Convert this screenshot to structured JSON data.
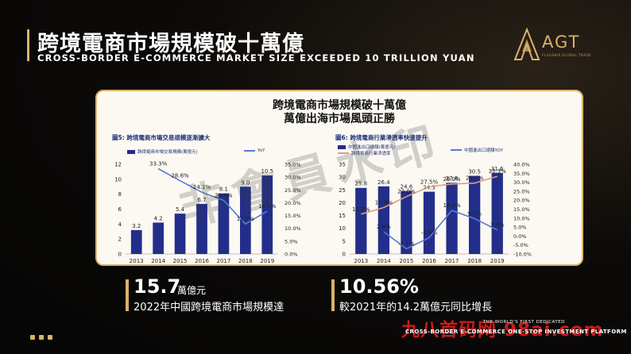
{
  "header": {
    "title_zh": "跨境電商市場規模破十萬億",
    "title_en": "CROSS-BORDER E-COMMERCE MARKET SIZE EXCEEDED 10 TRILLION YUAN"
  },
  "logo": {
    "text": "AGT",
    "subtext": "FLAGSHIP GLOBAL TRADE"
  },
  "panel": {
    "heading1": "跨境電商市場規模破十萬億",
    "heading2": "萬億出海市場風頭正勝"
  },
  "watermark": "非會員水印",
  "colors": {
    "accent": "#d9b26a",
    "bar": "#232e8a",
    "line": "#5a7ad0",
    "line_red": "#e49a80"
  },
  "chart_data": [
    {
      "type": "bar",
      "title": "圖5: 跨境電商市場交易規模逐漸擴大",
      "categories": [
        "2013",
        "2014",
        "2015",
        "2016",
        "2017",
        "2018",
        "2019"
      ],
      "series": [
        {
          "name": "跨境電商市場交易規模(萬億元)",
          "type": "bar",
          "axis": "left",
          "values": [
            3.2,
            4.2,
            5.4,
            6.7,
            8.1,
            9.0,
            10.5
          ]
        },
        {
          "name": "YoY",
          "type": "line",
          "axis": "right",
          "values": [
            null,
            33.3,
            28.6,
            24.1,
            20.9,
            11.7,
            16.7
          ]
        }
      ],
      "labels": {
        "bar": [
          "3.2",
          "4.2",
          "5.4",
          "6.7",
          "8.1",
          "9.0",
          "10.5"
        ],
        "line": [
          "",
          "33.3%",
          "28.6%",
          "24.1%",
          "20.9%",
          "11.7%",
          "16.7%"
        ]
      },
      "left_ticks": [
        "0",
        "2",
        "4",
        "6",
        "8",
        "10",
        "12"
      ],
      "right_ticks": [
        "0.0%",
        "5.0%",
        "10.0%",
        "15.0%",
        "20.0%",
        "25.0%",
        "30.0%",
        "35.0%"
      ],
      "ylim_left": [
        0,
        12
      ],
      "ylim_right": [
        0,
        35
      ]
    },
    {
      "type": "bar",
      "title": "圖6: 跨境電商行業滲透率快速提升",
      "categories": [
        "2013",
        "2014",
        "2015",
        "2016",
        "2017",
        "2018",
        "2019"
      ],
      "series": [
        {
          "name": "中國進出口總額(萬億元)",
          "type": "bar",
          "axis": "left",
          "values": [
            25.8,
            26.4,
            24.6,
            24.3,
            27.8,
            30.5,
            31.6
          ]
        },
        {
          "name": "中國進出口總額YOY",
          "type": "line",
          "axis": "right",
          "values": [
            null,
            2.4,
            -7.1,
            -0.9,
            14.3,
            9.7,
            3.4
          ]
        },
        {
          "name": "跨境電商行業滲透率",
          "type": "line",
          "axis": "right",
          "values": [
            12.2,
            15.9,
            22.0,
            27.5,
            29.0,
            29.5,
            33.3
          ]
        }
      ],
      "labels": {
        "bar": [
          "25.8",
          "26.4",
          "24.6",
          "24.3",
          "27.8",
          "30.5",
          "31.6"
        ],
        "yoy": [
          "",
          "2.4%",
          "-7.1%",
          "-0.9%",
          "14.3%",
          "9.7%",
          "3.4%"
        ],
        "penetration": [
          "12.2%",
          "15.9%",
          "22.0%",
          "27.5%",
          "29.0%",
          "29.5%",
          "33.3%"
        ]
      },
      "left_ticks": [
        "0",
        "5",
        "10",
        "15",
        "20",
        "25",
        "30",
        "35"
      ],
      "right_ticks": [
        "-10.0%",
        "-5.0%",
        "0.0%",
        "5.0%",
        "10.0%",
        "15.0%",
        "20.0%",
        "25.0%",
        "30.0%",
        "35.0%",
        "40.0%"
      ],
      "ylim_left": [
        0,
        35
      ],
      "ylim_right": [
        -10,
        40
      ]
    }
  ],
  "stats": [
    {
      "value": "15.7",
      "unit": "萬億元",
      "desc": "2022年中國跨境電商市場規模達"
    },
    {
      "value": "10.56%",
      "unit": "",
      "desc": "較2021年的14.2萬億元同比增長"
    }
  ],
  "footer": {
    "watermark": "九八首码网 98ai.com",
    "line1": "THE WORLD'S FIRST DEDICATED",
    "line2": "CROSS-BORDER E-COMMERCE ONE-STOP INVESTMENT PLATFORM"
  }
}
